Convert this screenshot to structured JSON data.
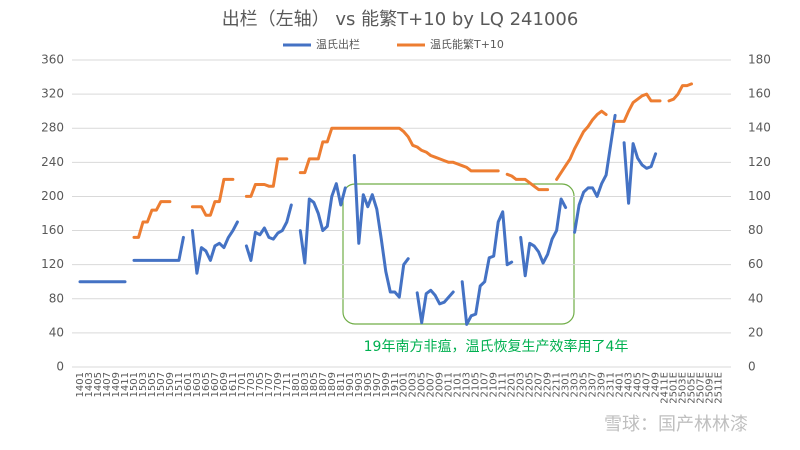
{
  "chart_data": {
    "type": "line",
    "title": "出栏（左轴） vs 能繁T+10 by LQ 241006",
    "annotation": "19年南方非瘟，温氏恢复生产效率用了4年",
    "watermark": "雪球：国产林林漆",
    "categories": [
      "1401",
      null,
      "1403",
      null,
      "1405",
      null,
      "1407",
      null,
      "1409",
      null,
      "1411",
      null,
      "1501",
      null,
      "1503",
      null,
      "1505",
      null,
      "1507",
      null,
      "1509",
      null,
      "1511",
      null,
      "1601",
      null,
      "1603",
      null,
      "1605",
      null,
      "1607",
      null,
      "1609",
      null,
      "1611",
      null,
      "1701",
      null,
      "1703",
      null,
      "1705",
      null,
      "1707",
      null,
      "1709",
      null,
      "1711",
      null,
      "1801",
      null,
      "1803",
      null,
      "1805",
      null,
      "1807",
      null,
      "1809",
      null,
      "1811",
      null,
      "1901",
      null,
      "1903",
      null,
      "1905",
      null,
      "1907",
      null,
      "1909",
      null,
      "1911",
      null,
      "2001",
      null,
      "2003",
      null,
      "2005",
      null,
      "2007",
      null,
      "2009",
      null,
      "2011",
      null,
      "2101",
      null,
      "2103",
      null,
      "2105",
      null,
      "2107",
      null,
      "2109",
      null,
      "2111",
      null,
      "2201",
      null,
      "2203",
      null,
      "2205",
      null,
      "2207",
      null,
      "2209",
      null,
      "2211",
      null,
      "2301",
      null,
      "2303",
      null,
      "2305",
      null,
      "2307",
      null,
      "2309",
      null,
      "2311",
      null,
      "2401",
      null,
      "2403",
      null,
      "2405",
      null,
      "2407",
      null,
      "2409",
      null,
      "2411E",
      null,
      "2501E",
      null,
      "2503E",
      null,
      "2505E",
      null,
      "2507E",
      null,
      "2509E",
      null,
      "2511E",
      null
    ],
    "series": [
      {
        "name": "温氏出栏",
        "color": "#4472c4",
        "axis": "y",
        "values": [
          100,
          100,
          100,
          100,
          100,
          100,
          100,
          100,
          100,
          100,
          100,
          null,
          125,
          125,
          125,
          125,
          125,
          125,
          125,
          125,
          125,
          125,
          125,
          152,
          null,
          160,
          110,
          140,
          136,
          125,
          142,
          145,
          140,
          152,
          160,
          170,
          null,
          142,
          125,
          158,
          155,
          163,
          152,
          150,
          157,
          160,
          170,
          190,
          null,
          160,
          122,
          197,
          193,
          180,
          160,
          165,
          200,
          215,
          190,
          210,
          null,
          248,
          145,
          202,
          188,
          202,
          185,
          150,
          112,
          88,
          88,
          82,
          120,
          127,
          null,
          87,
          52,
          86,
          90,
          84,
          74,
          76,
          82,
          88,
          null,
          100,
          50,
          60,
          62,
          95,
          100,
          128,
          130,
          170,
          182,
          120,
          123,
          null,
          152,
          107,
          145,
          142,
          135,
          122,
          132,
          150,
          160,
          197,
          187,
          null,
          158,
          190,
          205,
          210,
          210,
          200,
          215,
          225,
          260,
          295,
          null,
          263,
          192,
          262,
          245,
          237,
          233,
          235,
          250,
          null,
          null,
          null,
          null,
          null,
          null,
          null,
          null,
          null,
          null,
          null,
          null,
          null,
          null,
          null
        ]
      },
      {
        "name": "温氏能繁T+10",
        "color": "#ed7d31",
        "axis": "y2",
        "values": [
          null,
          null,
          null,
          null,
          null,
          null,
          null,
          null,
          null,
          null,
          null,
          null,
          76,
          76,
          85,
          85,
          92,
          92,
          97,
          97,
          97,
          null,
          null,
          null,
          null,
          94,
          94,
          94,
          89,
          89,
          97,
          97,
          110,
          110,
          110,
          null,
          null,
          100,
          100,
          107,
          107,
          107,
          106,
          106,
          122,
          122,
          122,
          null,
          null,
          114,
          114,
          122,
          122,
          122,
          132,
          132,
          140,
          140,
          140,
          140,
          140,
          140,
          140,
          140,
          140,
          140,
          140,
          140,
          140,
          140,
          140,
          140,
          138,
          135,
          130,
          129,
          127,
          126,
          124,
          123,
          122,
          121,
          120,
          120,
          119,
          118,
          117,
          115,
          115,
          115,
          115,
          115,
          115,
          115,
          null,
          113,
          112,
          110,
          110,
          110,
          108,
          106,
          104,
          104,
          104,
          null,
          110,
          114,
          118,
          122,
          128,
          133,
          138,
          141,
          145,
          148,
          150,
          148,
          null,
          144,
          144,
          144,
          150,
          155,
          157,
          159,
          160,
          156,
          156,
          156,
          null,
          156,
          157,
          160,
          165,
          165,
          166,
          null,
          null,
          null,
          null,
          null,
          null,
          null
        ]
      }
    ],
    "ylim": [
      0,
      360
    ],
    "yticks": [
      0,
      40,
      80,
      120,
      160,
      200,
      240,
      280,
      320,
      360
    ],
    "y2lim": [
      0,
      180
    ],
    "y2ticks": [
      0,
      20,
      40,
      60,
      80,
      100,
      120,
      140,
      160,
      180
    ],
    "grid": true,
    "legend": "top"
  }
}
